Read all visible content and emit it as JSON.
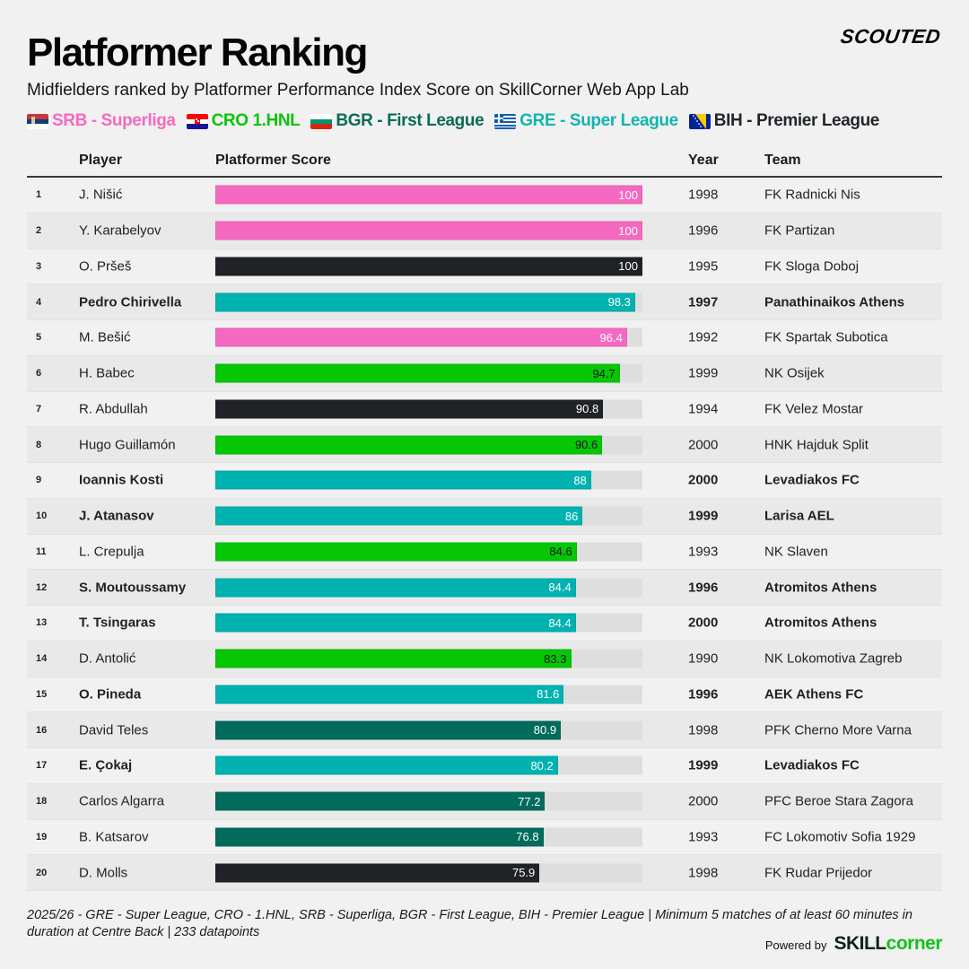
{
  "header": {
    "title": "Platformer Ranking",
    "subtitle": "Midfielders ranked by Platformer Performance Index Score on SkillCorner Web App Lab",
    "logo": "SCOUTED"
  },
  "legend": [
    {
      "label": "SRB - Superliga",
      "color": "#f56ac0",
      "flag": "serbia-flag"
    },
    {
      "label": "CRO 1.HNL",
      "color": "#0bc40b",
      "flag": "croatia-flag"
    },
    {
      "label": "BGR - First League",
      "color": "#0a6b57",
      "flag": "bulgaria-flag"
    },
    {
      "label": "GRE - Super League",
      "color": "#14b4b0",
      "flag": "greece-flag"
    },
    {
      "label": "BIH - Premier League",
      "color": "#21262b",
      "flag": "bosnia-flag"
    }
  ],
  "table": {
    "headers": {
      "player": "Player",
      "score": "Platformer Score",
      "year": "Year",
      "team": "Team"
    }
  },
  "league_colors": {
    "SRB": "#f56ac0",
    "CRO": "#06c606",
    "BGR": "#026b5b",
    "GRE": "#00b2b0",
    "BIH": "#1f2226"
  },
  "label_colors": {
    "SRB": "#ffffff",
    "CRO": "#111111",
    "BGR": "#ffffff",
    "GRE": "#ffffff",
    "BIH": "#ffffff"
  },
  "chart_data": {
    "type": "bar",
    "orientation": "horizontal",
    "title": "Platformer Ranking",
    "xlabel": "Platformer Score",
    "xlim": [
      0,
      100
    ],
    "rows": [
      {
        "rank": "1",
        "player": "J. Nišić",
        "score": 100,
        "score_label": "100",
        "year": "1998",
        "team": "FK Radnicki Nis",
        "league": "SRB",
        "bold": false
      },
      {
        "rank": "2",
        "player": "Y. Karabelyov",
        "score": 100,
        "score_label": "100",
        "year": "1996",
        "team": "FK Partizan",
        "league": "SRB",
        "bold": false
      },
      {
        "rank": "3",
        "player": "O. Pršeš",
        "score": 100,
        "score_label": "100",
        "year": "1995",
        "team": "FK Sloga Doboj",
        "league": "BIH",
        "bold": false
      },
      {
        "rank": "4",
        "player": "Pedro Chirivella",
        "score": 98.3,
        "score_label": "98.3",
        "year": "1997",
        "team": "Panathinaikos Athens",
        "league": "GRE",
        "bold": true
      },
      {
        "rank": "5",
        "player": "M. Bešić",
        "score": 96.4,
        "score_label": "96.4",
        "year": "1992",
        "team": "FK Spartak Subotica",
        "league": "SRB",
        "bold": false
      },
      {
        "rank": "6",
        "player": "H. Babec",
        "score": 94.7,
        "score_label": "94.7",
        "year": "1999",
        "team": "NK Osijek",
        "league": "CRO",
        "bold": false
      },
      {
        "rank": "7",
        "player": "R. Abdullah",
        "score": 90.8,
        "score_label": "90.8",
        "year": "1994",
        "team": "FK Velez Mostar",
        "league": "BIH",
        "bold": false
      },
      {
        "rank": "8",
        "player": "Hugo Guillamón",
        "score": 90.6,
        "score_label": "90.6",
        "year": "2000",
        "team": "HNK Hajduk Split",
        "league": "CRO",
        "bold": false
      },
      {
        "rank": "9",
        "player": "Ioannis Kosti",
        "score": 88,
        "score_label": "88",
        "year": "2000",
        "team": "Levadiakos FC",
        "league": "GRE",
        "bold": true
      },
      {
        "rank": "10",
        "player": "J. Atanasov",
        "score": 86,
        "score_label": "86",
        "year": "1999",
        "team": "Larisa AEL",
        "league": "GRE",
        "bold": true
      },
      {
        "rank": "11",
        "player": "L. Crepulja",
        "score": 84.6,
        "score_label": "84.6",
        "year": "1993",
        "team": "NK Slaven",
        "league": "CRO",
        "bold": false
      },
      {
        "rank": "12",
        "player": "S. Moutoussamy",
        "score": 84.4,
        "score_label": "84.4",
        "year": "1996",
        "team": "Atromitos Athens",
        "league": "GRE",
        "bold": true
      },
      {
        "rank": "13",
        "player": "T. Tsingaras",
        "score": 84.4,
        "score_label": "84.4",
        "year": "2000",
        "team": "Atromitos Athens",
        "league": "GRE",
        "bold": true
      },
      {
        "rank": "14",
        "player": "D. Antolić",
        "score": 83.3,
        "score_label": "83.3",
        "year": "1990",
        "team": "NK Lokomotiva Zagreb",
        "league": "CRO",
        "bold": false
      },
      {
        "rank": "15",
        "player": "O. Pineda",
        "score": 81.6,
        "score_label": "81.6",
        "year": "1996",
        "team": "AEK Athens FC",
        "league": "GRE",
        "bold": true
      },
      {
        "rank": "16",
        "player": "David Teles",
        "score": 80.9,
        "score_label": "80.9",
        "year": "1998",
        "team": "PFK Cherno More Varna",
        "league": "BGR",
        "bold": false
      },
      {
        "rank": "17",
        "player": "E. Çokaj",
        "score": 80.2,
        "score_label": "80.2",
        "year": "1999",
        "team": "Levadiakos FC",
        "league": "GRE",
        "bold": true
      },
      {
        "rank": "18",
        "player": "Carlos Algarra",
        "score": 77.2,
        "score_label": "77.2",
        "year": "2000",
        "team": "PFC Beroe Stara Zagora",
        "league": "BGR",
        "bold": false
      },
      {
        "rank": "19",
        "player": "B. Katsarov",
        "score": 76.8,
        "score_label": "76.8",
        "year": "1993",
        "team": "FC Lokomotiv Sofia 1929",
        "league": "BGR",
        "bold": false
      },
      {
        "rank": "20",
        "player": "D. Molls",
        "score": 75.9,
        "score_label": "75.9",
        "year": "1998",
        "team": "FK Rudar Prijedor",
        "league": "BIH",
        "bold": false
      }
    ]
  },
  "footer": {
    "note": "2025/26 - GRE - Super League, CRO - 1.HNL, SRB - Superliga, BGR - First League, BIH - Premier League | Minimum 5 matches of at least 60 minutes in duration at Centre Back | 233 datapoints",
    "powered_by": "Powered by",
    "brand_part1": "SKILL",
    "brand_part2": "corner"
  }
}
